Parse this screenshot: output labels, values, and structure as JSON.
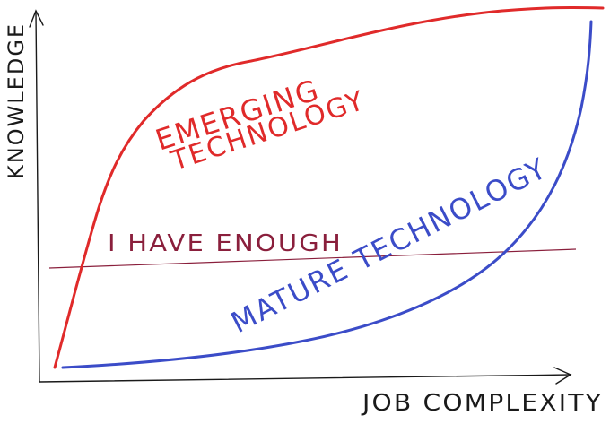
{
  "axes": {
    "x_label": "JOB COMPLEXITY",
    "y_label": "KNOWLEDGE"
  },
  "curves": {
    "emerging": {
      "label_line1": "EMERGING",
      "label_line2": "TECHNOLOGY",
      "color": "#e02a2a"
    },
    "mature": {
      "label_line1": "MATURE TECHNOLOGY",
      "color": "#3b4cc8"
    },
    "threshold": {
      "label": "I HAVE ENOUGH",
      "color": "#8a1f3c"
    }
  },
  "axis_color": "#1a1a1a"
}
